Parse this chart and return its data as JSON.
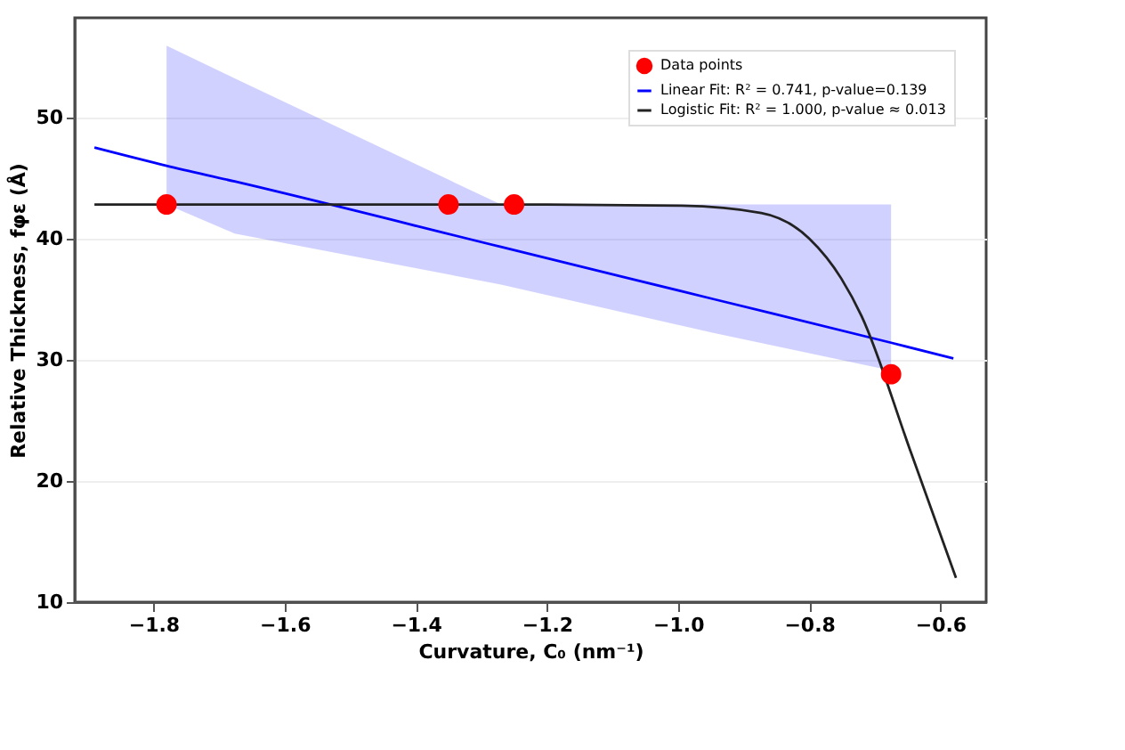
{
  "chart_data": {
    "type": "scatter",
    "xlabel": "Curvature, C₀ (nm⁻¹)",
    "ylabel": "Relative Thickness, fφε (Å)",
    "xlim": [
      -1.92,
      -0.53
    ],
    "ylim": [
      10,
      58.2
    ],
    "xticks": [
      {
        "value": -1.8,
        "label": "−1.8"
      },
      {
        "value": -1.6,
        "label": "−1.6"
      },
      {
        "value": -1.4,
        "label": "−1.4"
      },
      {
        "value": -1.2,
        "label": "−1.2"
      },
      {
        "value": -1.0,
        "label": "−1.0"
      },
      {
        "value": -0.8,
        "label": "−0.8"
      },
      {
        "value": -0.6,
        "label": "−0.6"
      }
    ],
    "yticks": [
      10,
      20,
      30,
      40,
      50
    ],
    "grid": "y",
    "legend": "top right",
    "series": [
      {
        "name": "Data points",
        "marker": "circle",
        "color": "#ff0000",
        "x": [
          -1.78,
          -1.35,
          -1.25,
          -0.675
        ],
        "values": [
          42.8,
          42.8,
          42.8,
          28.8
        ]
      },
      {
        "name": "Linear Fit: R² = 0.741, p-value=0.139",
        "type": "line",
        "marker": "none",
        "color": "#0000ff",
        "x": [
          -1.89,
          -1.78,
          -1.676,
          -1.27,
          -0.946,
          -0.675,
          -0.58
        ],
        "values": [
          47.5,
          46.0,
          44.7,
          39.3,
          35.0,
          31.4,
          30.1
        ],
        "lower": [
          null,
          42.8,
          40.4,
          36.2,
          32.2,
          29.1,
          null
        ],
        "upper": [
          null,
          55.9,
          53.2,
          42.8,
          42.8,
          42.8,
          null
        ]
      },
      {
        "name": "Logistic Fit: R² = 1.000, p-value ≈ 0.013",
        "type": "line",
        "marker": "none",
        "color": "#222222",
        "x": [
          -1.89,
          -1.5,
          -1.2,
          -0.995,
          -0.873,
          -0.8,
          -0.751,
          -0.72,
          -0.647,
          -0.576
        ],
        "values": [
          42.8,
          42.8,
          42.8,
          42.7,
          42.1,
          40.0,
          36.7,
          33.6,
          22.7,
          12.0
        ]
      }
    ]
  }
}
